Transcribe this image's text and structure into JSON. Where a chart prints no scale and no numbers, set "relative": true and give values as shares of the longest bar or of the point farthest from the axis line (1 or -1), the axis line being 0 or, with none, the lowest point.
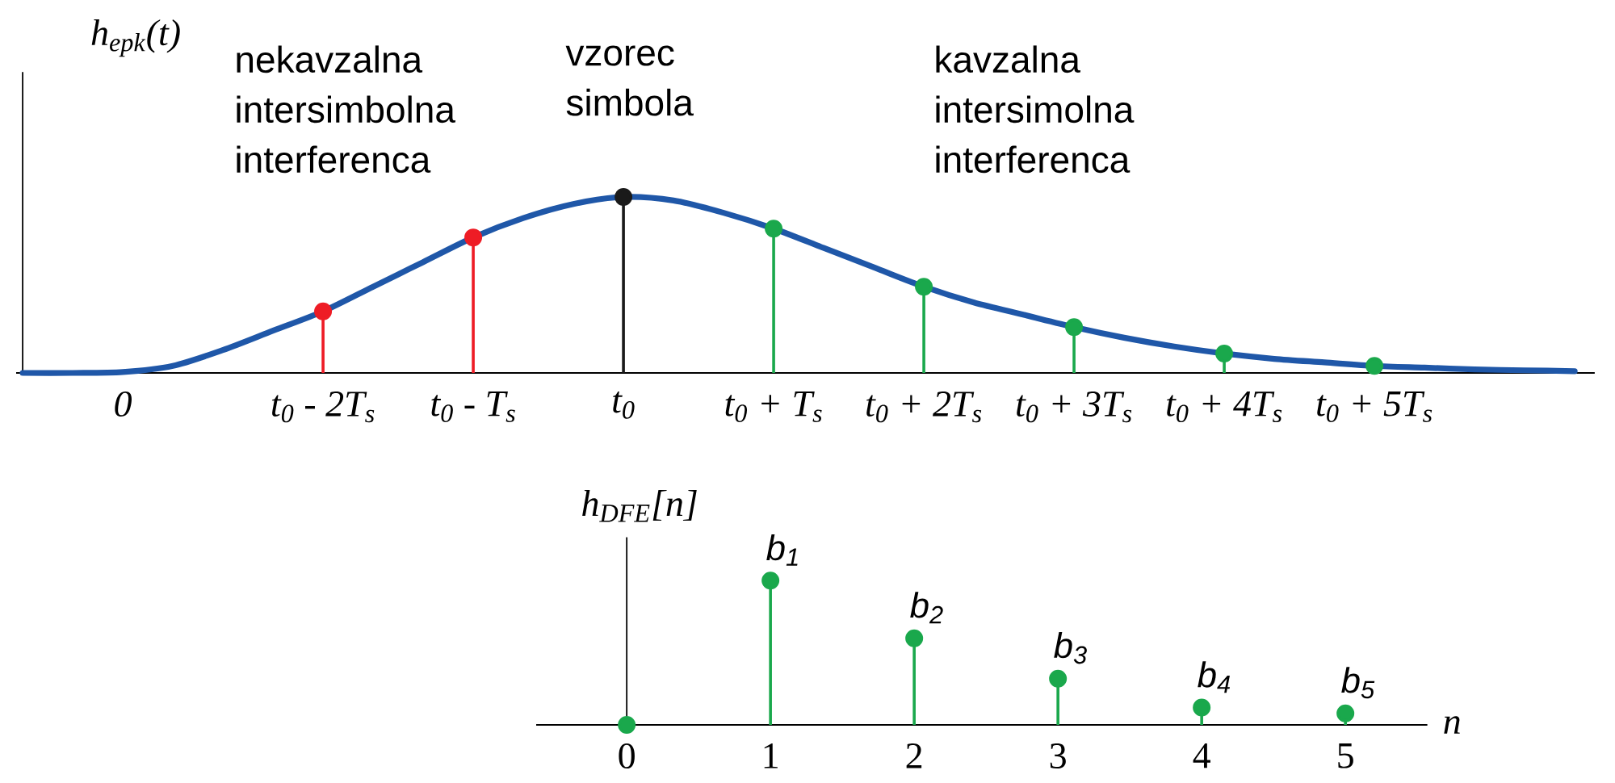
{
  "chart_data": [
    {
      "type": "lollipop",
      "relative": true,
      "ylabel": "h$_{epk}$(t)",
      "annotations": [
        "nekavzalna intersimbolna interferenca",
        "vzorec simbola",
        "kavzalna intersimolna interferenca"
      ],
      "categories": [
        null,
        null,
        "0",
        null,
        null,
        null,
        "t$_{0}$ - 2T$_{s}$",
        null,
        null,
        "t$_{0}$ - T$_{s}$",
        null,
        null,
        "t$_{0}$",
        null,
        null,
        "t$_{0}$ + T$_{s}$",
        null,
        null,
        "t$_{0}$ + 2T$_{s}$",
        null,
        null,
        "t$_{0}$ + 3T$_{s}$",
        null,
        null,
        "t$_{0}$ + 4T$_{s}$",
        null,
        null,
        "t$_{0}$ + 5T$_{s}$",
        null,
        null,
        null,
        null
      ],
      "series": [
        {
          "type": "line",
          "color": "#1f57a8",
          "values": [
            0,
            0,
            0.005,
            0.04,
            0.13,
            0.24,
            0.35,
            0.49,
            0.63,
            0.77,
            0.88,
            0.96,
            1,
            0.98,
            0.91,
            0.82,
            0.71,
            0.6,
            0.49,
            0.4,
            0.33,
            0.26,
            0.2,
            0.15,
            0.11,
            0.08,
            0.06,
            0.04,
            0.03,
            0.02,
            0.015,
            0.01
          ]
        },
        {
          "type": "lollipop",
          "color": "#ee1c25",
          "values": [
            null,
            null,
            null,
            null,
            null,
            null,
            0.35,
            null,
            null,
            0.77,
            null,
            null,
            null,
            null,
            null,
            null,
            null,
            null,
            null,
            null,
            null,
            null,
            null,
            null,
            null,
            null,
            null,
            null,
            null,
            null,
            null,
            null
          ]
        },
        {
          "type": "lollipop",
          "color": "#1a1a1a",
          "values": [
            null,
            null,
            null,
            null,
            null,
            null,
            null,
            null,
            null,
            null,
            null,
            null,
            1,
            null,
            null,
            null,
            null,
            null,
            null,
            null,
            null,
            null,
            null,
            null,
            null,
            null,
            null,
            null,
            null,
            null,
            null,
            null
          ]
        },
        {
          "type": "lollipop",
          "color": "#1aa84c",
          "values": [
            null,
            null,
            null,
            null,
            null,
            null,
            null,
            null,
            null,
            null,
            null,
            null,
            null,
            null,
            null,
            0.82,
            null,
            null,
            0.49,
            null,
            null,
            0.26,
            null,
            null,
            0.11,
            null,
            null,
            0.04,
            null,
            null,
            null,
            null
          ]
        }
      ]
    },
    {
      "type": "lollipop",
      "relative": true,
      "xlabel": "n",
      "ylabel": "h$_{DFE}$[n]",
      "xlim": [
        -0.63,
        5.57
      ],
      "xticks": [
        0,
        1,
        2,
        3,
        4,
        5
      ],
      "x": [
        0,
        1,
        2,
        3,
        4,
        5
      ],
      "values": [
        0,
        1,
        0.6,
        0.32,
        0.12,
        0.08
      ],
      "color": "#1aa84c",
      "annotations": [
        {
          "text": "b$_{1}$",
          "x": 1,
          "y": 1
        },
        {
          "text": "b$_{2}$",
          "x": 2,
          "y": 0.6
        },
        {
          "text": "b$_{3}$",
          "x": 3,
          "y": 0.32
        },
        {
          "text": "b$_{4}$",
          "x": 4,
          "y": 0.12
        },
        {
          "text": "b$_{5}$",
          "x": 5,
          "y": 0.08
        }
      ]
    }
  ]
}
